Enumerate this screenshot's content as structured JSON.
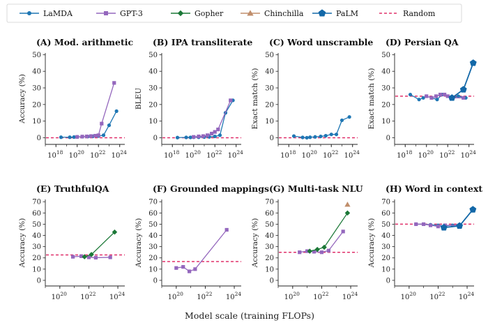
{
  "figure": {
    "xlabel": "Model scale (training FLOPs)",
    "legend": [
      {
        "name": "LaMDA",
        "color": "#1f77b4",
        "marker": "circle"
      },
      {
        "name": "GPT-3",
        "color": "#9467bd",
        "marker": "square"
      },
      {
        "name": "Gopher",
        "color": "#1b7837",
        "marker": "diamond"
      },
      {
        "name": "Chinchilla",
        "color": "#c08e6b",
        "marker": "triangle"
      },
      {
        "name": "PaLM",
        "color": "#1368a8",
        "marker": "pentagon"
      },
      {
        "name": "Random",
        "color": "#e0306a",
        "marker": "dashed-line"
      }
    ]
  },
  "chart_data": [
    {
      "type": "line",
      "title": "(A) Mod. arithmetic",
      "ylabel": "Accuracy (%)",
      "xscale": "log",
      "xlim": [
        1e+17,
        3e+24
      ],
      "xticks": [
        18,
        20,
        22,
        24
      ],
      "ylim": [
        -4,
        51
      ],
      "yticks": [
        0,
        10,
        20,
        30,
        40,
        50
      ],
      "random": 0,
      "series": [
        {
          "name": "LaMDA",
          "x": [
            3e+18,
            2e+19,
            5e+19,
            1e+20,
            3e+20,
            1e+21,
            3e+21,
            1e+22,
            3e+22,
            1e+23,
            5e+23
          ],
          "y": [
            0.3,
            0.3,
            0.4,
            0.5,
            0.6,
            0.7,
            0.8,
            1.0,
            1.5,
            7.5,
            16
          ]
        },
        {
          "name": "GPT-3",
          "x": [
            1e+20,
            3e+20,
            8e+20,
            2e+21,
            5e+21,
            1e+22,
            2e+22,
            3e+23
          ],
          "y": [
            0.5,
            0.7,
            0.8,
            1.0,
            1.2,
            1.5,
            8.5,
            33
          ]
        }
      ]
    },
    {
      "type": "line",
      "title": "(B) IPA transliterate",
      "ylabel": "BLEU",
      "xscale": "log",
      "xlim": [
        1e+17,
        3e+24
      ],
      "xticks": [
        18,
        20,
        22,
        24
      ],
      "ylim": [
        -4,
        51
      ],
      "yticks": [
        0,
        10,
        20,
        30,
        40,
        50
      ],
      "random": 0,
      "series": [
        {
          "name": "LaMDA",
          "x": [
            3e+18,
            2e+19,
            5e+19,
            1e+20,
            3e+20,
            1e+21,
            3e+21,
            1e+22,
            3e+22,
            1e+23,
            5e+23
          ],
          "y": [
            0.1,
            0.2,
            0.2,
            0.3,
            0.3,
            0.4,
            0.5,
            0.8,
            1.5,
            15,
            22.5
          ]
        },
        {
          "name": "GPT-3",
          "x": [
            1e+20,
            3e+20,
            8e+20,
            2e+21,
            5e+21,
            1e+22,
            2e+22,
            3e+23
          ],
          "y": [
            0.5,
            0.8,
            1.0,
            1.5,
            2.5,
            3.5,
            5.0,
            22.5
          ]
        }
      ]
    },
    {
      "type": "line",
      "title": "(C) Word unscramble",
      "ylabel": "Exact match (%)",
      "xscale": "log",
      "xlim": [
        1e+17,
        3e+24
      ],
      "xticks": [
        18,
        20,
        22,
        24
      ],
      "ylim": [
        -4,
        51
      ],
      "yticks": [
        0,
        10,
        20,
        30,
        40,
        50
      ],
      "random": 0,
      "series": [
        {
          "name": "LaMDA",
          "x": [
            3e+18,
            2e+19,
            5e+19,
            1e+20,
            3e+20,
            1e+21,
            3e+21,
            1e+22,
            3e+22,
            1e+23,
            5e+23
          ],
          "y": [
            1.0,
            0.2,
            0.0,
            0.3,
            0.5,
            0.8,
            1.2,
            2.0,
            2.0,
            10.5,
            12.5
          ]
        }
      ]
    },
    {
      "type": "line",
      "title": "(D) Persian QA",
      "ylabel": "Exact match (%)",
      "xscale": "log",
      "xlim": [
        1e+17,
        3e+24
      ],
      "xticks": [
        18,
        20,
        22,
        24
      ],
      "ylim": [
        -4,
        51
      ],
      "yticks": [
        0,
        10,
        20,
        30,
        40,
        50
      ],
      "random": 25,
      "series": [
        {
          "name": "LaMDA",
          "x": [
            3e+18,
            2e+19,
            5e+19,
            1e+20,
            3e+20,
            1e+21,
            3e+21,
            1e+22,
            3e+22,
            1e+23,
            5e+23
          ],
          "y": [
            26,
            23,
            24,
            25,
            24,
            23,
            26,
            25,
            24,
            25,
            24
          ]
        },
        {
          "name": "GPT-3",
          "x": [
            1e+20,
            3e+20,
            8e+20,
            2e+21,
            5e+21,
            1e+22,
            2e+22,
            3e+23
          ],
          "y": [
            25,
            24,
            25,
            26,
            26,
            25,
            24,
            24
          ]
        },
        {
          "name": "PaLM",
          "x": [
            2.5e+22,
            3e+23,
            2.5e+24
          ],
          "y": [
            24,
            29,
            45
          ]
        }
      ]
    },
    {
      "type": "line",
      "title": "(E) TruthfulQA",
      "ylabel": "Accuracy (%)",
      "xscale": "log",
      "xlim": [
        1e+19,
        3e+24
      ],
      "xticks": [
        20,
        22,
        24
      ],
      "ylim": [
        -5,
        72
      ],
      "yticks": [
        0,
        10,
        20,
        30,
        40,
        50,
        60,
        70
      ],
      "random": 22.6,
      "series": [
        {
          "name": "GPT-3",
          "x": [
            8e+20,
            3e+21,
            1e+22,
            3e+22,
            3e+23
          ],
          "y": [
            21,
            21.5,
            20.5,
            20.2,
            20.5
          ]
        },
        {
          "name": "Gopher",
          "x": [
            5e+21,
            1.5e+22,
            6e+23
          ],
          "y": [
            21,
            23,
            43
          ]
        }
      ]
    },
    {
      "type": "line",
      "title": "(F) Grounded mappings",
      "ylabel": "Accuracy (%)",
      "xscale": "log",
      "xlim": [
        1e+19,
        3e+24
      ],
      "xticks": [
        20,
        22,
        24
      ],
      "ylim": [
        -5,
        72
      ],
      "yticks": [
        0,
        10,
        20,
        30,
        40,
        50,
        60,
        70
      ],
      "random": 16.7,
      "series": [
        {
          "name": "GPT-3",
          "x": [
            1e+20,
            3e+20,
            8e+20,
            2e+21,
            3e+23
          ],
          "y": [
            11,
            12,
            8,
            10,
            45
          ]
        }
      ]
    },
    {
      "type": "line",
      "title": "(G) Multi-task NLU",
      "ylabel": "Accuracy (%)",
      "xscale": "log",
      "xlim": [
        1e+19,
        3e+24
      ],
      "xticks": [
        20,
        22,
        24
      ],
      "ylim": [
        -5,
        72
      ],
      "yticks": [
        0,
        10,
        20,
        30,
        40,
        50,
        60,
        70
      ],
      "random": 25,
      "series": [
        {
          "name": "GPT-3",
          "x": [
            3e+20,
            1e+21,
            3e+21,
            1e+22,
            3e+22,
            3e+23
          ],
          "y": [
            25,
            26,
            25.5,
            25,
            26.5,
            43.5
          ]
        },
        {
          "name": "Gopher",
          "x": [
            1.5e+21,
            5e+21,
            1.5e+22,
            6e+23
          ],
          "y": [
            26,
            27.5,
            29.5,
            60
          ]
        },
        {
          "name": "Chinchilla",
          "x": [
            6e+23
          ],
          "y": [
            67.5
          ]
        }
      ]
    },
    {
      "type": "line",
      "title": "(H) Word in context",
      "ylabel": "Accuracy (%)",
      "xscale": "log",
      "xlim": [
        1e+19,
        3e+24
      ],
      "xticks": [
        20,
        22,
        24
      ],
      "ylim": [
        -5,
        72
      ],
      "yticks": [
        0,
        10,
        20,
        30,
        40,
        50,
        60,
        70
      ],
      "random": 50,
      "series": [
        {
          "name": "LaMDA",
          "x": [
            3e+20,
            1e+21,
            3e+21,
            1e+22,
            3e+22,
            1e+23,
            3e+23
          ],
          "y": [
            50,
            50,
            49.5,
            49,
            48.5,
            49,
            49
          ]
        },
        {
          "name": "GPT-3",
          "x": [
            3e+20,
            1e+21,
            3e+21,
            1e+22,
            3e+22,
            3e+23
          ],
          "y": [
            50,
            50,
            49,
            48,
            49,
            49
          ]
        },
        {
          "name": "PaLM",
          "x": [
            2.5e+22,
            3e+23,
            2.5e+24
          ],
          "y": [
            47,
            48.5,
            63
          ]
        }
      ]
    }
  ]
}
